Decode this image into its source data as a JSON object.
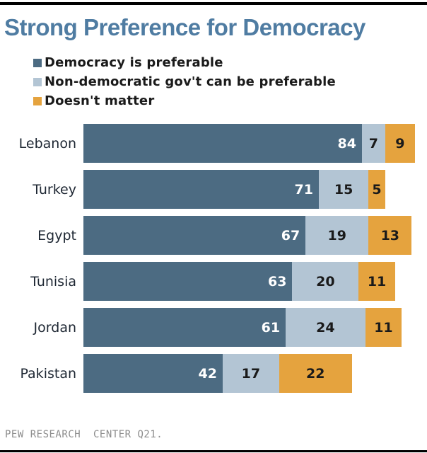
{
  "title": "Strong Preference for Democracy",
  "legend": {
    "items": [
      {
        "label": "Democracy is preferable",
        "color": "#4C6B82"
      },
      {
        "label": "Non-democratic gov't can be preferable",
        "color": "#B3C5D4"
      },
      {
        "label": "Doesn't matter",
        "color": "#E5A33E"
      }
    ]
  },
  "source_line": "PEW RESEARCH  CENTER Q21.",
  "colors": {
    "title": "#4F7CA2",
    "rule": "#000000",
    "source_text": "#8D8D8D",
    "category_label": "#1E2733"
  },
  "chart_data": {
    "type": "bar",
    "orientation": "horizontal",
    "stacked": true,
    "title": "Strong Preference for Democracy",
    "xlim": [
      0,
      100
    ],
    "grid": false,
    "legend_position": "top",
    "value_labels": true,
    "categories": [
      "Lebanon",
      "Turkey",
      "Egypt",
      "Tunisia",
      "Jordan",
      "Pakistan"
    ],
    "series": [
      {
        "name": "Democracy is preferable",
        "color": "#4C6B82",
        "value_label_color": "#FFFFFF",
        "values": [
          84,
          71,
          67,
          63,
          61,
          42
        ]
      },
      {
        "name": "Non-democratic gov't can be preferable",
        "color": "#B3C5D4",
        "value_label_color": "#1A1A1A",
        "values": [
          7,
          15,
          19,
          20,
          24,
          17
        ]
      },
      {
        "name": "Doesn't matter",
        "color": "#E5A33E",
        "value_label_color": "#1A1A1A",
        "values": [
          9,
          5,
          13,
          11,
          11,
          22
        ]
      }
    ]
  }
}
